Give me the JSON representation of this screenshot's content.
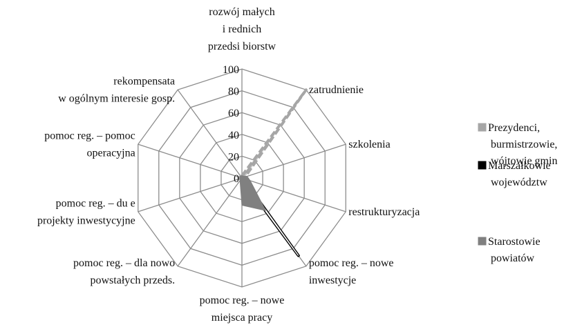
{
  "chart_data": {
    "type": "radar",
    "categories": [
      [
        "rozwój małych",
        "i  rednich",
        "przedsi biorstw"
      ],
      [
        "zatrudnienie"
      ],
      [
        "szkolenia"
      ],
      [
        "restrukturyzacja"
      ],
      [
        "pomoc reg. – nowe",
        "inwestycje"
      ],
      [
        "pomoc reg. – nowe",
        "miejsca pracy"
      ],
      [
        "pomoc reg. – dla nowo",
        "powstałych przeds."
      ],
      [
        "pomoc reg. – du e",
        "projekty inwestycyjne"
      ],
      [
        "pomoc reg. – pomoc",
        "operacyjna"
      ],
      [
        "rekompensata",
        "w ogólnym interesie gosp."
      ]
    ],
    "series": [
      {
        "name": [
          "Prezydenci,",
          "burmistrzowie,",
          "wójtowie gmin"
        ],
        "color": "#a6a6a6",
        "values": [
          2,
          100,
          3,
          3,
          3,
          3,
          2,
          2,
          2,
          2
        ]
      },
      {
        "name": [
          "Marszałkowie",
          "województw"
        ],
        "color": "#000000",
        "values": [
          1,
          1,
          1,
          1,
          88,
          1,
          1,
          1,
          1,
          1
        ]
      },
      {
        "name": [
          "Starostowie",
          "powiatów"
        ],
        "color": "#808080",
        "values": [
          2,
          2,
          5,
          8,
          37,
          25,
          3,
          2,
          2,
          2
        ]
      }
    ],
    "ylim": [
      0,
      100
    ],
    "yticks": [
      0,
      20,
      40,
      60,
      80,
      100
    ],
    "grid": true,
    "legend": "right"
  }
}
